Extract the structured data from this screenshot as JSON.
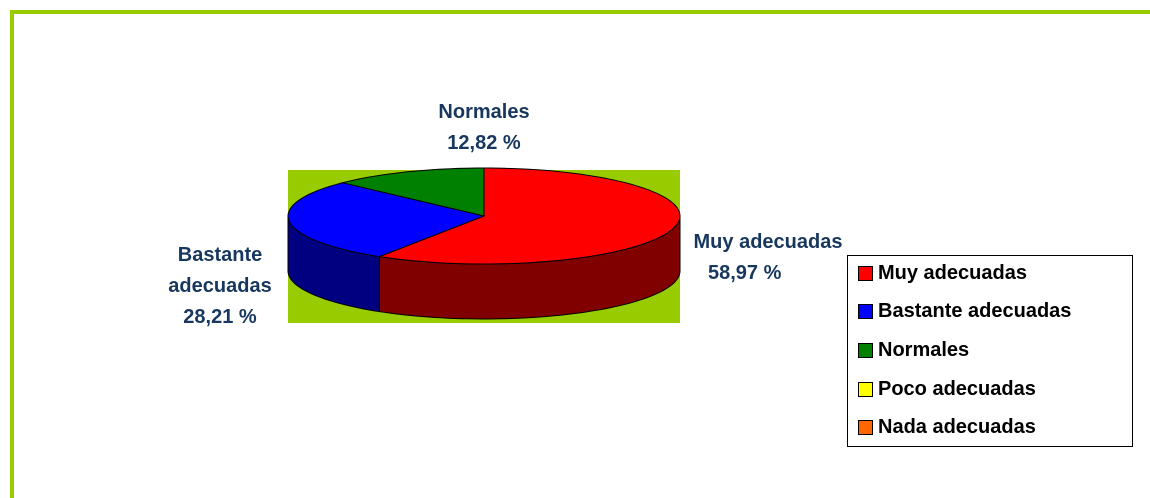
{
  "chart_data": {
    "type": "pie3d",
    "categories": [
      "Muy adecuadas",
      "Bastante adecuadas",
      "Normales",
      "Poco adecuadas",
      "Nada adecuadas"
    ],
    "values": [
      58.97,
      28.21,
      12.82,
      0,
      0
    ],
    "value_labels": [
      "58,97 %",
      "28,21 %",
      "12,82 %",
      null,
      null
    ],
    "colors": [
      "#ff0000",
      "#0000ff",
      "#008000",
      "#ffff00",
      "#ff6600"
    ],
    "legend": "right"
  }
}
